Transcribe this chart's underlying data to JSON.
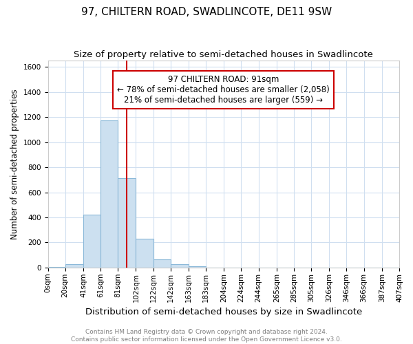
{
  "title": "97, CHILTERN ROAD, SWADLINCOTE, DE11 9SW",
  "subtitle": "Size of property relative to semi-detached houses in Swadlincote",
  "xlabel": "Distribution of semi-detached houses by size in Swadlincote",
  "ylabel": "Number of semi-detached properties",
  "footnote": "Contains HM Land Registry data © Crown copyright and database right 2024.\nContains public sector information licensed under the Open Government Licence v3.0.",
  "bin_edges": [
    0,
    20,
    41,
    61,
    81,
    102,
    122,
    142,
    163,
    183,
    204,
    224,
    244,
    265,
    285,
    305,
    326,
    346,
    366,
    387,
    407
  ],
  "bar_heights": [
    5,
    28,
    420,
    1175,
    715,
    230,
    65,
    28,
    10,
    0,
    0,
    0,
    0,
    0,
    0,
    0,
    0,
    0,
    0,
    0
  ],
  "bar_color": "#cce0f0",
  "bar_edge_color": "#8ab8d8",
  "property_size": 91,
  "red_line_color": "#cc0000",
  "annotation_line1": "97 CHILTERN ROAD: 91sqm",
  "annotation_line2": "← 78% of semi-detached houses are smaller (2,058)",
  "annotation_line3": "21% of semi-detached houses are larger (559) →",
  "annotation_box_edge": "#cc0000",
  "ylim": [
    0,
    1650
  ],
  "yticks": [
    0,
    200,
    400,
    600,
    800,
    1000,
    1200,
    1400,
    1600
  ],
  "title_fontsize": 11,
  "subtitle_fontsize": 9.5,
  "xlabel_fontsize": 9.5,
  "ylabel_fontsize": 8.5,
  "tick_fontsize": 7.5,
  "annotation_fontsize": 8.5,
  "footnote_fontsize": 6.5,
  "background_color": "#ffffff",
  "grid_color": "#d0dff0"
}
